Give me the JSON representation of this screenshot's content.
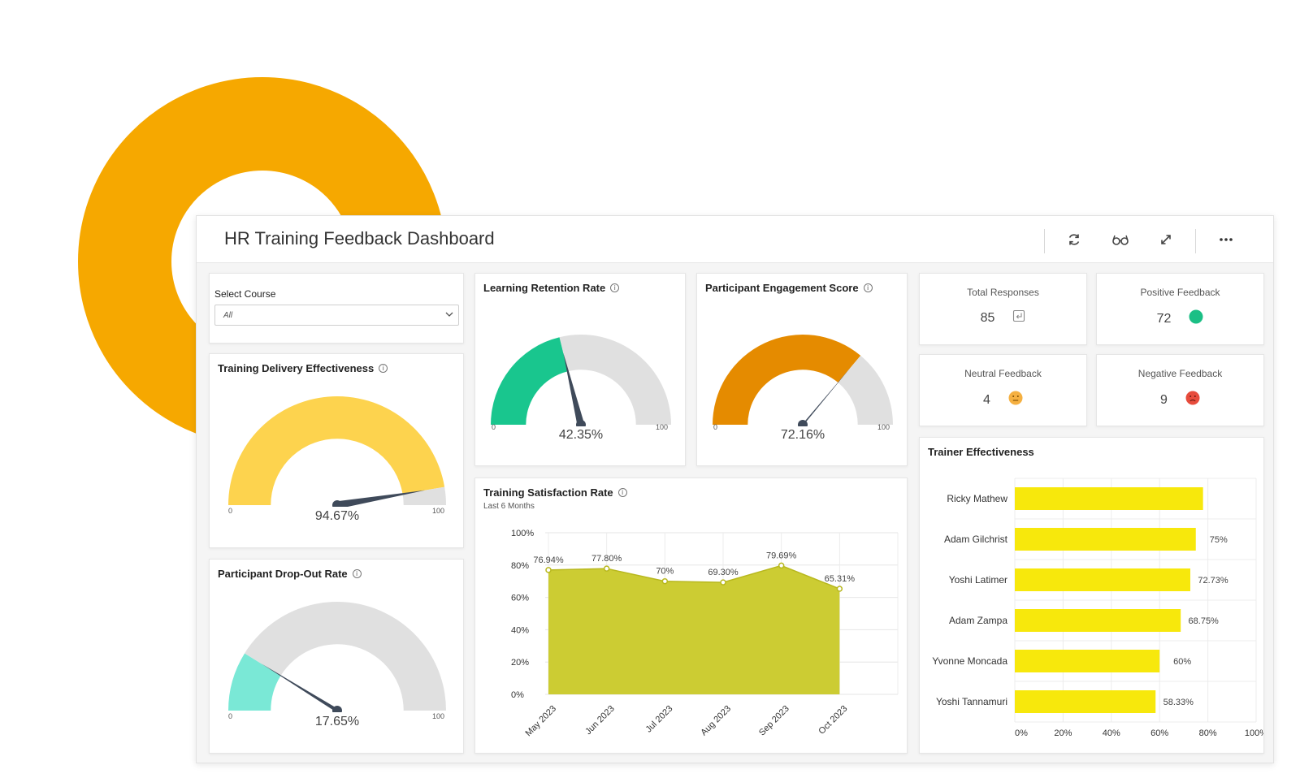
{
  "window": {
    "title": "HR Training Feedback Dashboard"
  },
  "toolbar": {
    "icons": [
      "refresh-icon",
      "glasses-icon",
      "expand-icon",
      "more-icon"
    ]
  },
  "filter": {
    "label": "Select Course",
    "value": "All"
  },
  "gauges": {
    "delivery": {
      "title": "Training Delivery Effectiveness",
      "value": 94.67,
      "display": "94.67%",
      "min": "0",
      "max": "100",
      "color": "#fdd34e"
    },
    "dropout": {
      "title": "Participant Drop-Out Rate",
      "value": 17.65,
      "display": "17.65%",
      "min": "0",
      "max": "100",
      "color": "#7ae8d6"
    },
    "retention": {
      "title": "Learning Retention Rate",
      "value": 42.35,
      "display": "42.35%",
      "min": "0",
      "max": "100",
      "color": "#19c68e"
    },
    "engagement": {
      "title": "Participant Engagement Score",
      "value": 72.16,
      "display": "72.16%",
      "min": "0",
      "max": "100",
      "color": "#e58b00"
    }
  },
  "kpis": {
    "total": {
      "label": "Total Responses",
      "value": "85",
      "icon": "reply-icon"
    },
    "positive": {
      "label": "Positive Feedback",
      "value": "72",
      "icon": "green-dot-icon",
      "color": "#1bbf85"
    },
    "neutral": {
      "label": "Neutral Feedback",
      "value": "4",
      "icon": "neutral-face-icon",
      "color": "#f5b041"
    },
    "negative": {
      "label": "Negative Feedback",
      "value": "9",
      "icon": "sad-face-icon",
      "color": "#e74c3c"
    }
  },
  "chart_data": [
    {
      "type": "area",
      "title": "Training Satisfaction Rate",
      "subtitle": "Last 6 Months",
      "categories": [
        "May 2023",
        "Jun 2023",
        "Jul 2023",
        "Aug 2023",
        "Sep 2023",
        "Oct 2023"
      ],
      "values": [
        76.94,
        77.8,
        70,
        69.3,
        79.69,
        65.31
      ],
      "labels": [
        "76.94%",
        "77.80%",
        "70%",
        "69.30%",
        "79.69%",
        "65.31%"
      ],
      "yticks": [
        "0%",
        "20%",
        "40%",
        "60%",
        "80%",
        "100%"
      ],
      "ylim": [
        0,
        100
      ],
      "color": "#cccc33",
      "grid": true
    },
    {
      "type": "bar",
      "orientation": "horizontal",
      "title": "Trainer Effectiveness",
      "categories": [
        "Ricky Mathew",
        "Adam Gilchrist",
        "Yoshi Latimer",
        "Adam Zampa",
        "Yvonne Moncada",
        "Yoshi Tannamuri"
      ],
      "values": [
        78,
        75,
        72.73,
        68.75,
        60,
        58.33
      ],
      "labels": [
        "",
        "75%",
        "72.73%",
        "68.75%",
        "60%",
        "58.33%"
      ],
      "xticks": [
        "0%",
        "20%",
        "40%",
        "60%",
        "80%",
        "100%"
      ],
      "xlim": [
        0,
        100
      ],
      "color": "#f7e80c",
      "grid": true
    }
  ]
}
